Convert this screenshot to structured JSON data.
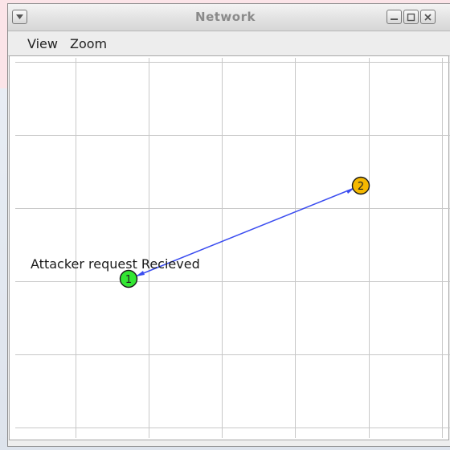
{
  "window": {
    "title": "Network"
  },
  "menu": {
    "items": [
      "View",
      "Zoom"
    ]
  },
  "graph": {
    "nodes": [
      {
        "id": "1",
        "label": "1",
        "color": "#33e633"
      },
      {
        "id": "2",
        "label": "2",
        "color": "#f5b800"
      }
    ],
    "edge": {
      "from": "2",
      "to": "1",
      "color": "#3a4cf0"
    },
    "annotation": "Attacker request Recieved"
  },
  "colors": {
    "grid": "#c8c8c8",
    "canvas_bg": "#ffffff"
  },
  "icons": {
    "window_menu": "chevron-down-icon",
    "minimize": "minimize-icon",
    "maximize": "maximize-icon",
    "close": "close-icon"
  }
}
